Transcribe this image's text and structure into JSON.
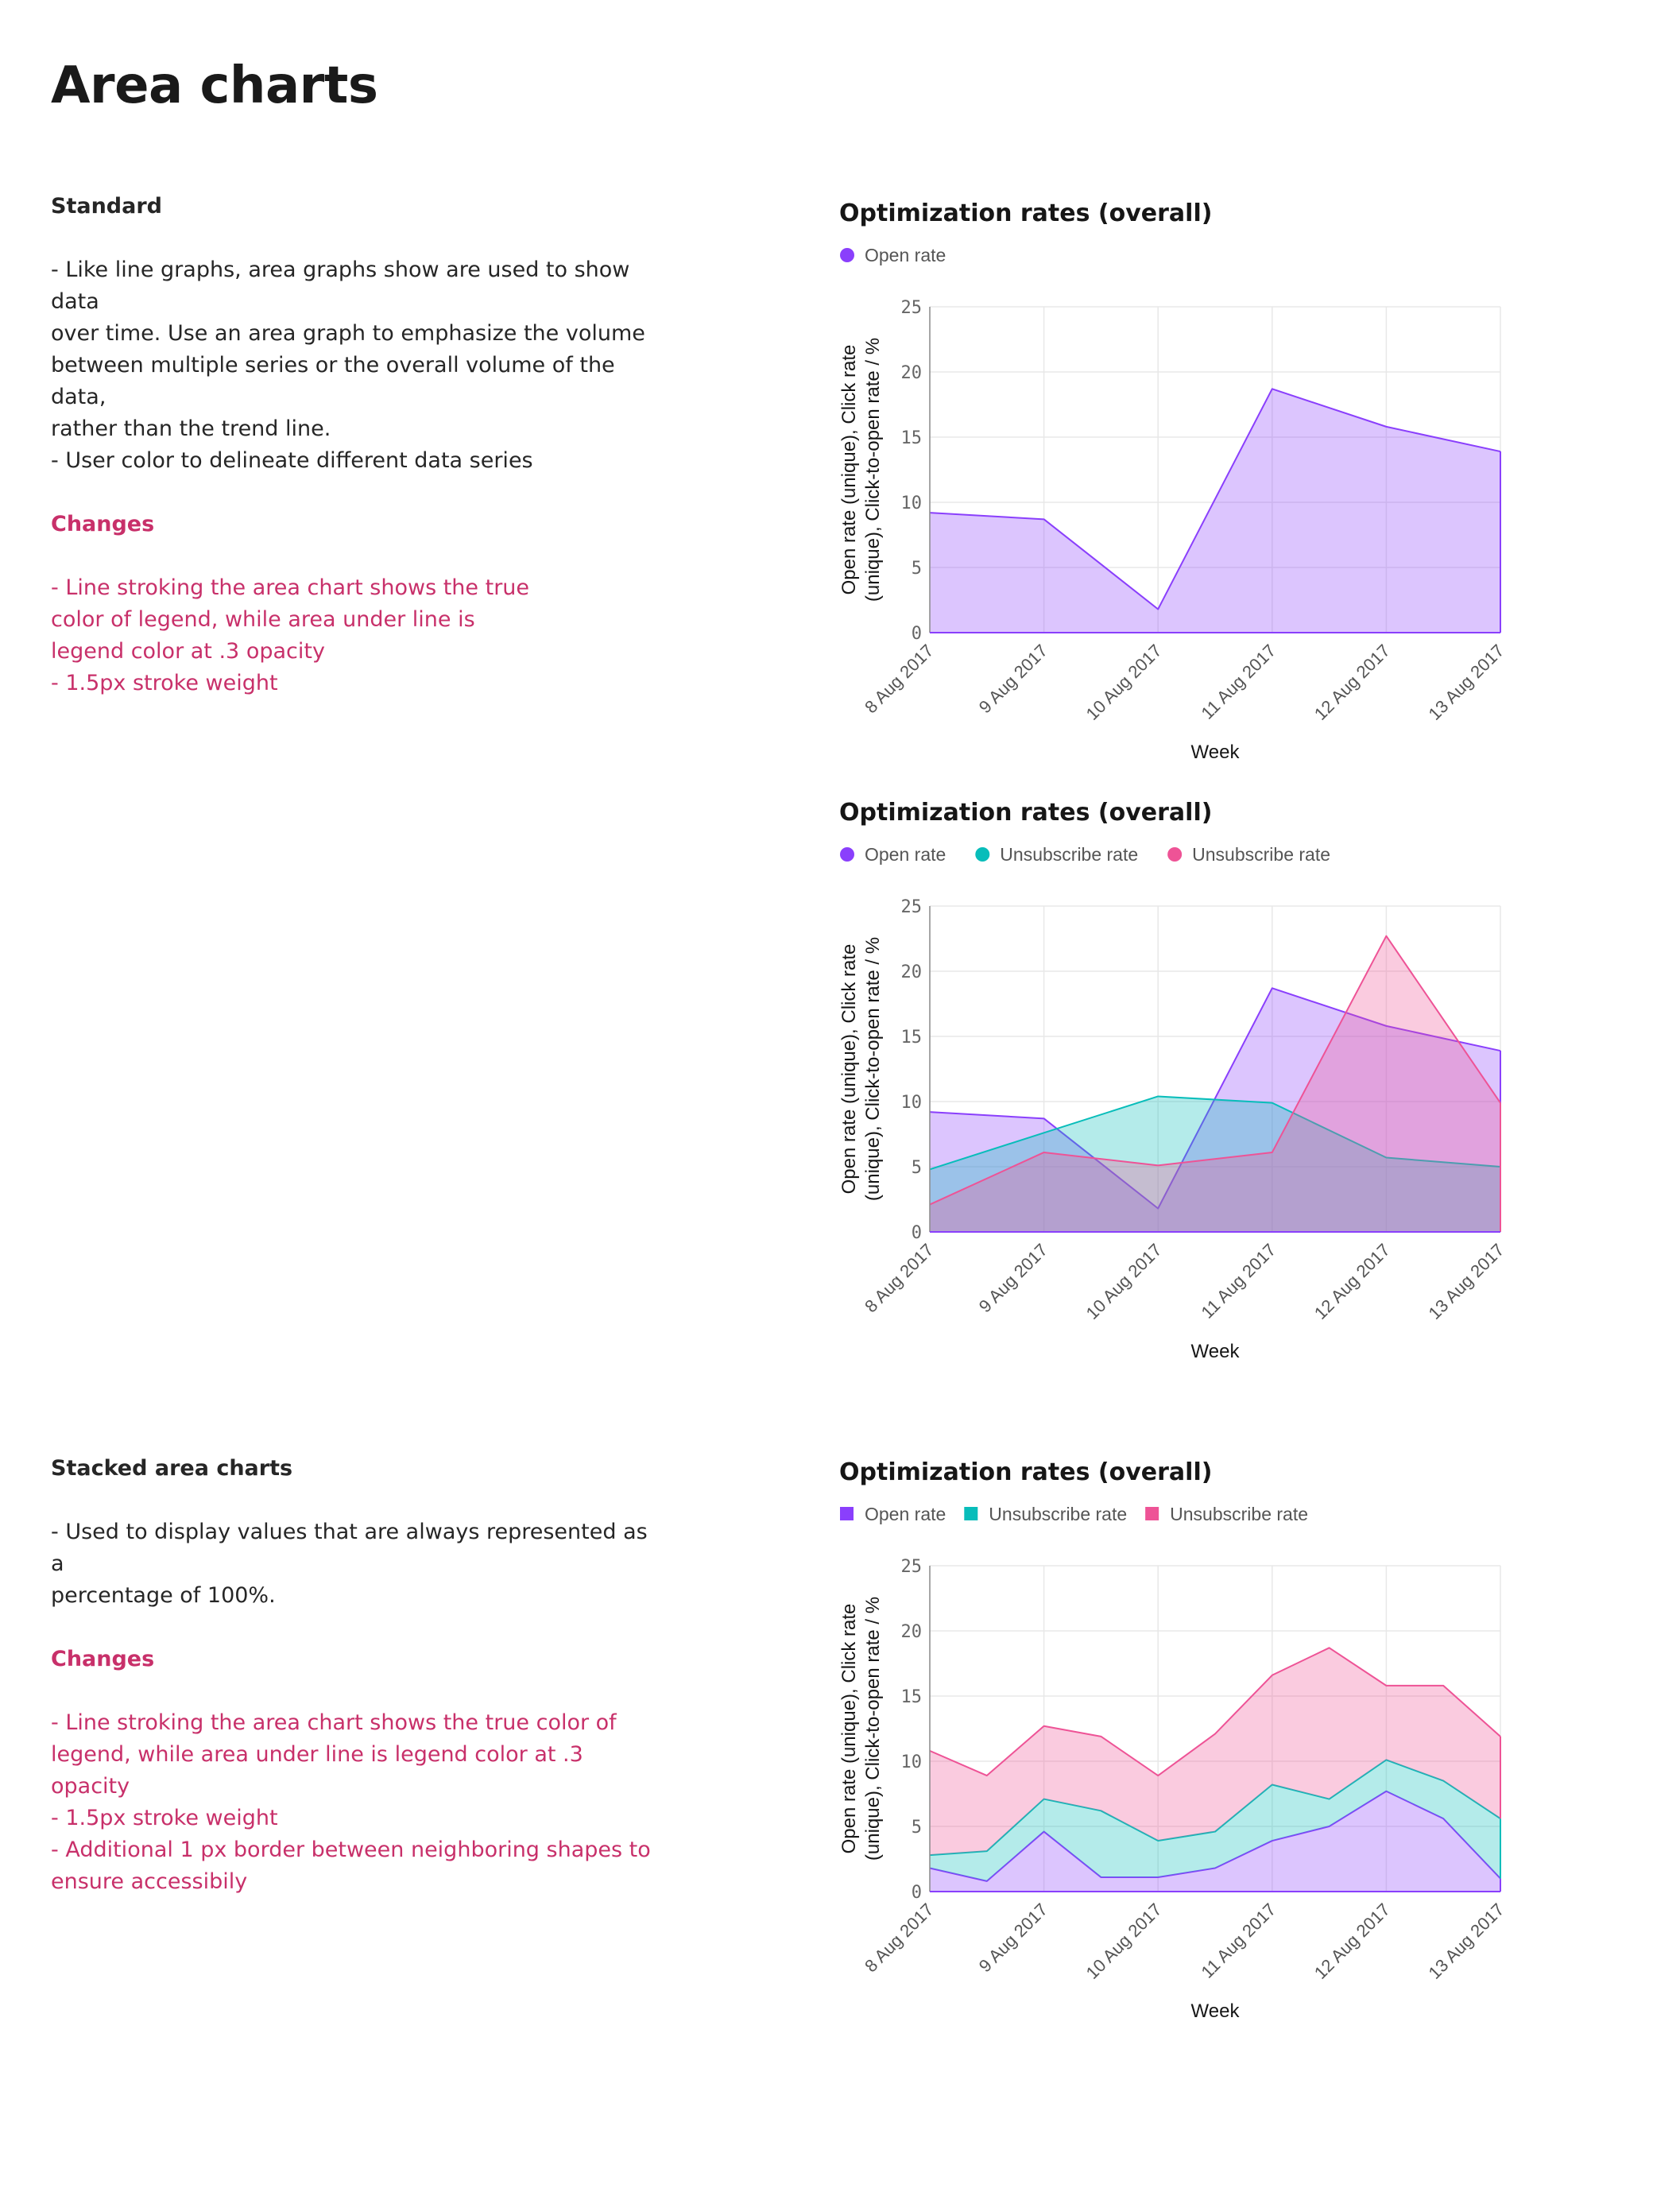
{
  "page": {
    "title": "Area charts"
  },
  "sections": {
    "standard": {
      "heading": "Standard",
      "body": "- Like line graphs, area graphs show are used to show data\nover time. Use an area graph to emphasize the volume\nbetween multiple series or the overall volume of the data,\nrather than the trend line.\n- User color to delineate different data series",
      "changes_heading": "Changes",
      "changes_body": "- Line stroking the area chart shows the true\ncolor of legend, while area under line is\nlegend color at .3 opacity\n- 1.5px stroke weight"
    },
    "stacked": {
      "heading": "Stacked area charts",
      "body": "- Used to display values that are always represented as a\npercentage of 100%.",
      "changes_heading": "Changes",
      "changes_body": "- Line stroking the area chart shows the true color of\nlegend, while area under line is legend color at .3\nopacity\n- 1.5px stroke weight\n- Additional 1 px border between neighboring shapes to\nensure accessibily"
    }
  },
  "colors": {
    "purple": "#8a3ffc",
    "teal": "#08bdba",
    "pink": "#ee5396"
  },
  "chart_data": [
    {
      "type": "area",
      "title": "Optimization rates (overall)",
      "legend_shape": "circle",
      "legend_position": "top-left",
      "xlabel": "Week",
      "ylabel_lines": [
        "Open rate (unique), Click rate",
        "(unique), Click-to-open rate / %"
      ],
      "ylim": [
        0,
        25
      ],
      "yticks": [
        0,
        5,
        10,
        15,
        20,
        25
      ],
      "grid": true,
      "categories": [
        "8 Aug 2017",
        "9 Aug 2017",
        "10 Aug 2017",
        "11 Aug 2017",
        "12 Aug 2017",
        "13 Aug 2017"
      ],
      "series": [
        {
          "name": "Open rate",
          "color": "#8a3ffc",
          "x": [
            0,
            1,
            2,
            3,
            4,
            5
          ],
          "values": [
            9.2,
            8.7,
            1.8,
            18.7,
            15.8,
            13.9
          ]
        }
      ]
    },
    {
      "type": "area",
      "title": "Optimization rates (overall)",
      "legend_shape": "circle",
      "legend_position": "top-left",
      "xlabel": "Week",
      "ylabel_lines": [
        "Open rate (unique), Click rate",
        "(unique), Click-to-open rate / %"
      ],
      "ylim": [
        0,
        25
      ],
      "yticks": [
        0,
        5,
        10,
        15,
        20,
        25
      ],
      "grid": true,
      "categories": [
        "8 Aug 2017",
        "9 Aug 2017",
        "10 Aug 2017",
        "11 Aug 2017",
        "12 Aug 2017",
        "13 Aug 2017"
      ],
      "series": [
        {
          "name": "Open rate",
          "color": "#8a3ffc",
          "x": [
            0,
            1,
            2,
            3,
            4,
            5
          ],
          "values": [
            9.2,
            8.7,
            1.8,
            18.7,
            15.8,
            13.9
          ]
        },
        {
          "name": "Unsubscribe rate",
          "color": "#08bdba",
          "x": [
            0,
            1,
            2,
            3,
            4,
            5
          ],
          "values": [
            4.8,
            7.6,
            10.4,
            9.9,
            5.7,
            5.0
          ]
        },
        {
          "name": "Unsubscribe rate",
          "color": "#ee5396",
          "x": [
            0,
            1,
            2,
            3,
            4,
            5
          ],
          "values": [
            2.1,
            6.1,
            5.1,
            6.1,
            22.7,
            9.9
          ]
        }
      ]
    },
    {
      "type": "area",
      "stacked": true,
      "title": "Optimization rates (overall)",
      "legend_shape": "square",
      "legend_position": "top-left",
      "xlabel": "Week",
      "ylabel_lines": [
        "Open rate (unique), Click rate",
        "(unique), Click-to-open rate / %"
      ],
      "ylim": [
        0,
        25
      ],
      "yticks": [
        0,
        5,
        10,
        15,
        20,
        25
      ],
      "grid": true,
      "categories": [
        "8 Aug 2017",
        "9 Aug 2017",
        "10 Aug 2017",
        "11 Aug 2017",
        "12 Aug 2017",
        "13 Aug 2017"
      ],
      "series": [
        {
          "name": "Open rate",
          "color": "#8a3ffc",
          "x": [
            0,
            0.5,
            1,
            1.5,
            2,
            2.5,
            3,
            3.5,
            4,
            4.5,
            5
          ],
          "values": [
            1.8,
            0.8,
            4.6,
            1.1,
            1.1,
            1.8,
            3.9,
            5.0,
            7.7,
            5.6,
            1.0
          ]
        },
        {
          "name": "Unsubscribe rate",
          "color": "#08bdba",
          "x": [
            0,
            0.5,
            1,
            1.5,
            2,
            2.5,
            3,
            3.5,
            4,
            4.5,
            5
          ],
          "values": [
            1.0,
            2.3,
            2.5,
            5.1,
            2.8,
            2.8,
            4.3,
            2.1,
            2.4,
            2.9,
            4.6
          ]
        },
        {
          "name": "Unsubscribe rate",
          "color": "#ee5396",
          "x": [
            0,
            0.5,
            1,
            1.5,
            2,
            2.5,
            3,
            3.5,
            4,
            4.5,
            5
          ],
          "values": [
            8.0,
            5.8,
            5.6,
            5.7,
            5.0,
            7.5,
            8.4,
            11.6,
            5.7,
            7.3,
            6.3
          ]
        }
      ]
    }
  ]
}
